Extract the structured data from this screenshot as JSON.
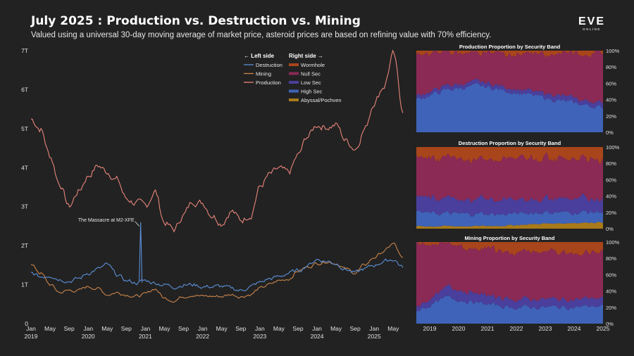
{
  "header": {
    "title": "July 2025 : Production vs. Destruction vs. Mining",
    "subtitle": "Valued using a universal 30-day moving average of market price, asteroid prices are based on refining value with 70% efficiency.",
    "logo_main": "EVE",
    "logo_sub": "ONLINE"
  },
  "legend": {
    "left_header": "← Left side",
    "right_header": "Right side →",
    "left_items": [
      {
        "label": "Destruction",
        "color": "#5b8fd6"
      },
      {
        "label": "Mining",
        "color": "#c8834a"
      },
      {
        "label": "Production",
        "color": "#e8857a"
      }
    ],
    "right_items": [
      {
        "label": "Wormhole",
        "color": "#a9451b"
      },
      {
        "label": "Null Sec",
        "color": "#8a2a55"
      },
      {
        "label": "Low Sec",
        "color": "#4a3f9c"
      },
      {
        "label": "High Sec",
        "color": "#3f63b8"
      },
      {
        "label": "Abyssal/Pochven",
        "color": "#a87a1a"
      }
    ]
  },
  "chart_data": [
    {
      "type": "line",
      "ylim": [
        0,
        7
      ],
      "y_ticks": [
        "0",
        "1T",
        "2T",
        "3T",
        "4T",
        "5T",
        "6T",
        "7T"
      ],
      "x_ticks": [
        {
          "month": "Jan",
          "year": "2019"
        },
        {
          "month": "May",
          "year": ""
        },
        {
          "month": "Sep",
          "year": ""
        },
        {
          "month": "Jan",
          "year": "2020"
        },
        {
          "month": "May",
          "year": ""
        },
        {
          "month": "Sep",
          "year": ""
        },
        {
          "month": "Jan",
          "year": "2021"
        },
        {
          "month": "May",
          "year": ""
        },
        {
          "month": "Sep",
          "year": ""
        },
        {
          "month": "Jan",
          "year": "2022"
        },
        {
          "month": "May",
          "year": ""
        },
        {
          "month": "Sep",
          "year": ""
        },
        {
          "month": "Jan",
          "year": "2023"
        },
        {
          "month": "May",
          "year": ""
        },
        {
          "month": "Sep",
          "year": ""
        },
        {
          "month": "Jan",
          "year": "2024"
        },
        {
          "month": "May",
          "year": ""
        },
        {
          "month": "Sep",
          "year": ""
        },
        {
          "month": "Jan",
          "year": "2025"
        },
        {
          "month": "May",
          "year": ""
        }
      ],
      "x": [
        "2019-01",
        "2019-03",
        "2019-05",
        "2019-07",
        "2019-09",
        "2019-11",
        "2020-01",
        "2020-03",
        "2020-05",
        "2020-07",
        "2020-09",
        "2020-11",
        "2021-01",
        "2021-03",
        "2021-05",
        "2021-07",
        "2021-09",
        "2021-11",
        "2022-01",
        "2022-03",
        "2022-05",
        "2022-07",
        "2022-09",
        "2022-11",
        "2023-01",
        "2023-03",
        "2023-05",
        "2023-07",
        "2023-09",
        "2023-11",
        "2024-01",
        "2024-03",
        "2024-05",
        "2024-07",
        "2024-09",
        "2024-11",
        "2025-01",
        "2025-03",
        "2025-05",
        "2025-07"
      ],
      "series": [
        {
          "name": "Production",
          "color": "#e8857a",
          "values": [
            5.25,
            5.0,
            4.3,
            3.6,
            3.0,
            3.4,
            3.8,
            4.05,
            3.9,
            3.7,
            3.2,
            3.1,
            3.0,
            3.4,
            2.6,
            2.4,
            2.8,
            3.15,
            3.1,
            2.8,
            2.6,
            2.9,
            2.65,
            2.8,
            3.5,
            3.8,
            3.95,
            3.85,
            4.3,
            4.8,
            5.1,
            5.05,
            5.1,
            4.7,
            4.5,
            5.0,
            5.7,
            6.1,
            6.9,
            5.5
          ]
        },
        {
          "name": "Mining",
          "color": "#c8834a",
          "values": [
            1.5,
            1.3,
            1.0,
            0.8,
            0.85,
            0.85,
            0.95,
            0.9,
            0.75,
            0.8,
            0.75,
            0.7,
            0.75,
            0.9,
            0.65,
            0.6,
            0.7,
            0.75,
            0.7,
            0.7,
            0.7,
            0.75,
            0.7,
            0.75,
            0.9,
            1.0,
            1.1,
            1.15,
            1.35,
            1.45,
            1.55,
            1.6,
            1.55,
            1.4,
            1.3,
            1.5,
            1.7,
            1.85,
            2.05,
            1.65
          ]
        },
        {
          "name": "Destruction",
          "color": "#5b8fd6",
          "values": [
            1.3,
            1.2,
            1.25,
            1.15,
            1.1,
            1.15,
            1.3,
            1.4,
            1.5,
            1.25,
            1.1,
            1.05,
            1.1,
            1.05,
            1.0,
            0.95,
            1.0,
            1.0,
            0.95,
            0.95,
            0.95,
            0.9,
            0.85,
            0.95,
            1.05,
            1.15,
            1.2,
            1.3,
            1.35,
            1.5,
            1.65,
            1.6,
            1.55,
            1.4,
            1.3,
            1.4,
            1.5,
            1.6,
            1.65,
            1.45
          ]
        }
      ],
      "annotation": {
        "text": "The Massacre at M2-XFE",
        "x": "2020-12",
        "y": 2.6
      }
    },
    {
      "type": "area",
      "title": "Production Proportion by Security Band",
      "x": [
        "2019",
        "2020",
        "2021",
        "2022",
        "2023",
        "2024",
        "2025"
      ],
      "series": [
        {
          "name": "High Sec",
          "values": [
            40,
            52,
            57,
            50,
            43,
            36,
            30
          ]
        },
        {
          "name": "Low Sec",
          "values": [
            5,
            5,
            5,
            5,
            6,
            6,
            6
          ]
        },
        {
          "name": "Null Sec",
          "values": [
            52,
            40,
            35,
            42,
            48,
            55,
            61
          ]
        },
        {
          "name": "Wormhole",
          "values": [
            3,
            3,
            3,
            3,
            3,
            3,
            3
          ]
        }
      ]
    },
    {
      "type": "area",
      "title": "Destruction Proportion by Security Band",
      "x": [
        "2019",
        "2020",
        "2021",
        "2022",
        "2023",
        "2024",
        "2025"
      ],
      "series": [
        {
          "name": "Abyssal/Pochven",
          "values": [
            3,
            3,
            3,
            4,
            6,
            7,
            8
          ]
        },
        {
          "name": "High Sec",
          "values": [
            17,
            15,
            15,
            14,
            14,
            13,
            13
          ]
        },
        {
          "name": "Low Sec",
          "values": [
            17,
            18,
            18,
            18,
            17,
            17,
            17
          ]
        },
        {
          "name": "Null Sec",
          "values": [
            49,
            50,
            50,
            50,
            50,
            50,
            49
          ]
        },
        {
          "name": "Wormhole",
          "values": [
            14,
            14,
            14,
            14,
            13,
            13,
            13
          ]
        }
      ]
    },
    {
      "type": "area",
      "title": "Mining Proportion by Security Band",
      "x": [
        "2019",
        "2020",
        "2021",
        "2022",
        "2023",
        "2024",
        "2025"
      ],
      "series": [
        {
          "name": "High Sec",
          "values": [
            15,
            32,
            25,
            20,
            20,
            20,
            22
          ]
        },
        {
          "name": "Low Sec",
          "values": [
            5,
            12,
            11,
            10,
            10,
            10,
            10
          ]
        },
        {
          "name": "Null Sec",
          "values": [
            77,
            53,
            56,
            58,
            58,
            57,
            56
          ]
        },
        {
          "name": "Wormhole",
          "values": [
            3,
            3,
            8,
            12,
            12,
            13,
            12
          ]
        }
      ]
    }
  ],
  "side_axis": {
    "y_ticks": [
      "0%",
      "20%",
      "40%",
      "60%",
      "80%",
      "100%"
    ],
    "x_ticks": [
      "2019",
      "2020",
      "2021",
      "2022",
      "2023",
      "2024",
      "2025"
    ]
  }
}
